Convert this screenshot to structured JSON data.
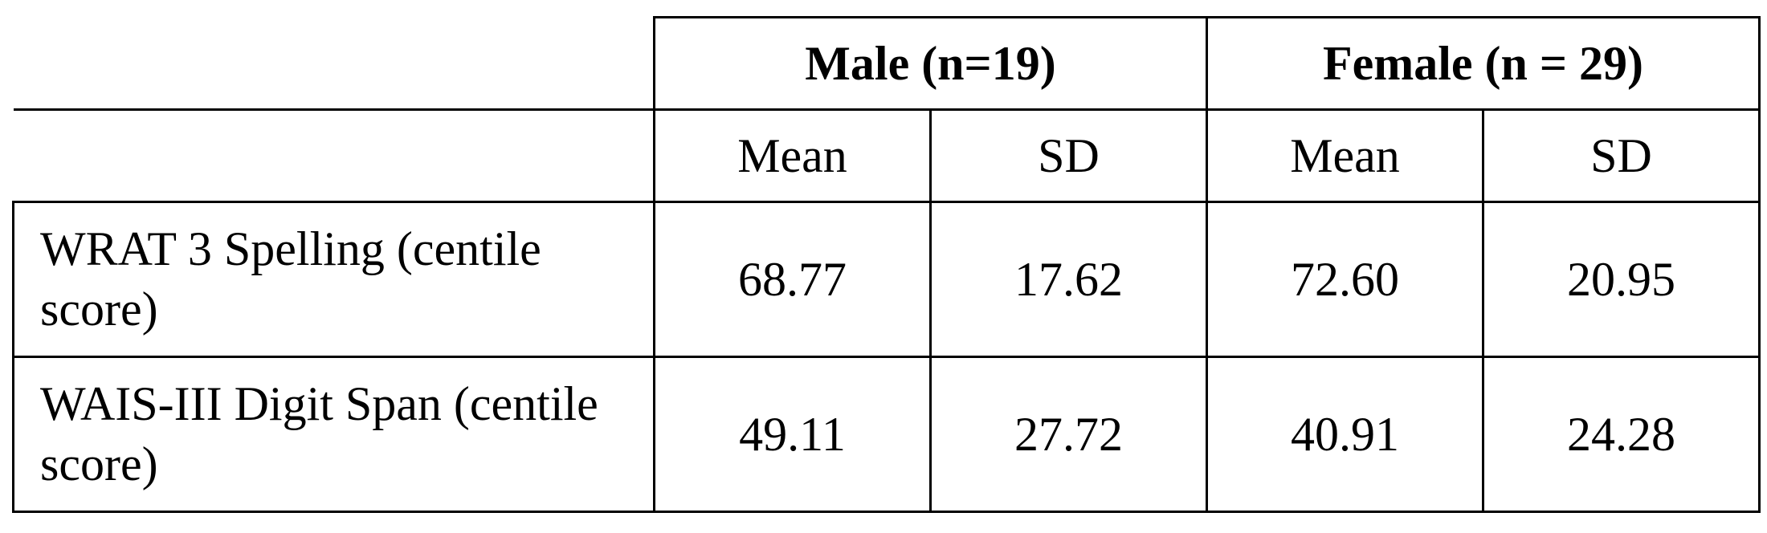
{
  "table": {
    "groups": [
      {
        "label": "Male (n=19)"
      },
      {
        "label": "Female (n = 29)"
      }
    ],
    "subheaders": [
      "Mean",
      "SD",
      "Mean",
      "SD"
    ],
    "rows": [
      {
        "label": "WRAT 3 Spelling (centile score)",
        "values": [
          "68.77",
          "17.62",
          "72.60",
          "20.95"
        ]
      },
      {
        "label": "WAIS-III Digit Span (centile score)",
        "values": [
          "49.11",
          "27.72",
          "40.91",
          "24.28"
        ]
      }
    ]
  }
}
